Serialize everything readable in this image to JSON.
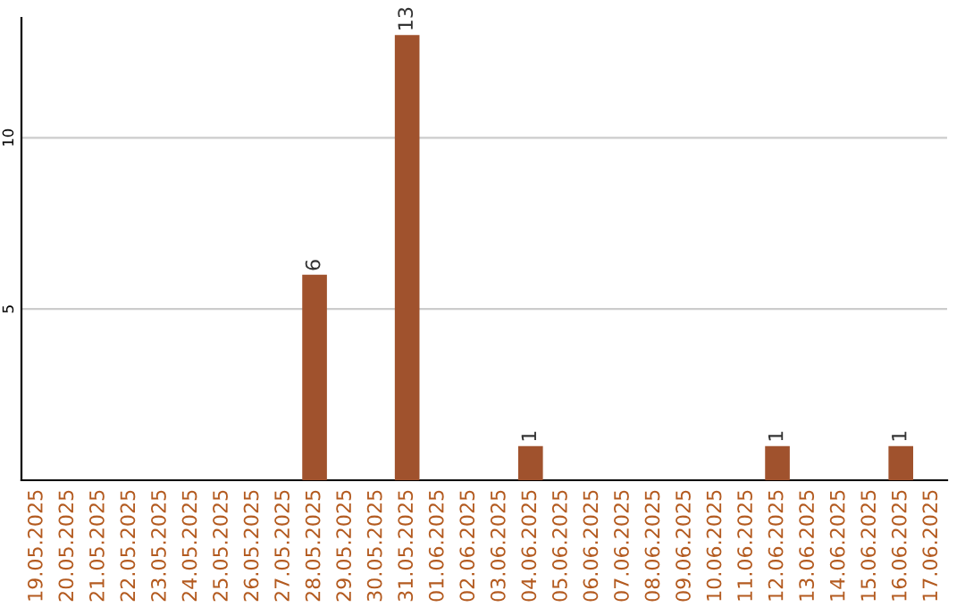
{
  "chart_data": {
    "type": "bar",
    "categories": [
      "19.05.2025",
      "20.05.2025",
      "21.05.2025",
      "22.05.2025",
      "23.05.2025",
      "24.05.2025",
      "25.05.2025",
      "26.05.2025",
      "27.05.2025",
      "28.05.2025",
      "29.05.2025",
      "30.05.2025",
      "31.05.2025",
      "01.06.2025",
      "02.06.2025",
      "03.06.2025",
      "04.06.2025",
      "05.06.2025",
      "06.06.2025",
      "07.06.2025",
      "08.06.2025",
      "09.06.2025",
      "10.06.2025",
      "11.06.2025",
      "12.06.2025",
      "13.06.2025",
      "14.06.2025",
      "15.06.2025",
      "16.06.2025",
      "17.06.2025"
    ],
    "values": [
      0,
      0,
      0,
      0,
      0,
      0,
      0,
      0,
      0,
      6,
      0,
      0,
      13,
      0,
      0,
      0,
      1,
      0,
      0,
      0,
      0,
      0,
      0,
      0,
      1,
      0,
      0,
      0,
      1,
      0
    ],
    "value_labels": [
      null,
      null,
      null,
      null,
      null,
      null,
      null,
      null,
      null,
      "6",
      null,
      null,
      "13",
      null,
      null,
      null,
      "1",
      null,
      null,
      null,
      null,
      null,
      null,
      null,
      "1",
      null,
      null,
      null,
      "1",
      null
    ],
    "color": "#a0522d",
    "ylim": [
      0,
      13.5
    ],
    "yticks": [
      5,
      10
    ],
    "grid": "y"
  }
}
